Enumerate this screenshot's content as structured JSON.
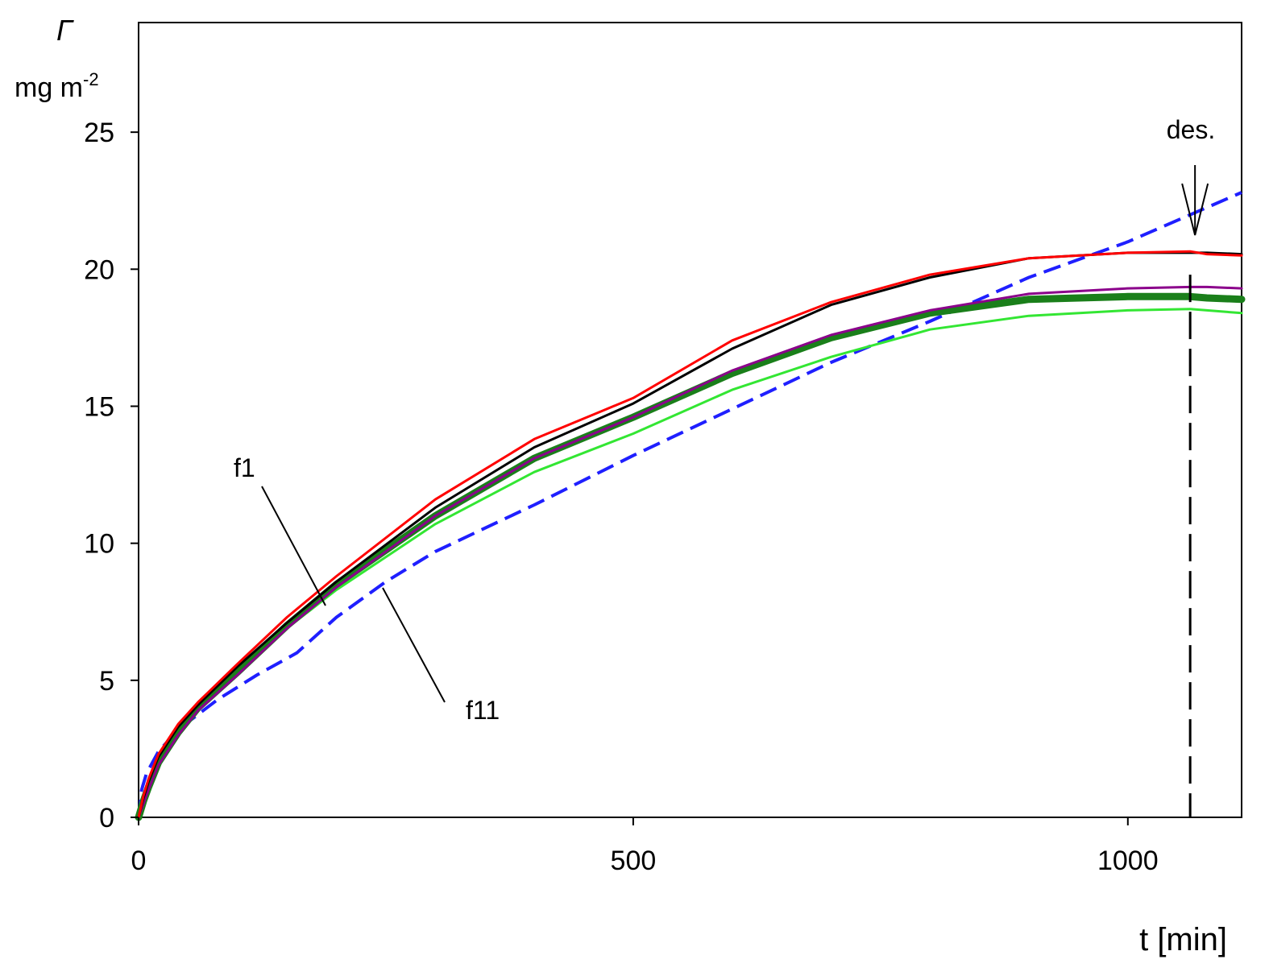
{
  "chart_data": {
    "type": "line",
    "ylabel_symbol": "Γ",
    "ylabel_unit": "mg m",
    "ylabel_unit_exp": "-2",
    "xlabel": "t [min]",
    "xlim": [
      0,
      1115
    ],
    "ylim": [
      0,
      29
    ],
    "xticks": [
      0,
      500,
      1000
    ],
    "yticks": [
      0,
      5,
      10,
      15,
      20,
      25
    ],
    "grid": false,
    "annotations": {
      "f1": "f1",
      "f11": "f11",
      "des": "des."
    },
    "desorption_time": 1063,
    "series": [
      {
        "color": "#ff0000",
        "style": "solid",
        "x": [
          0,
          5,
          10,
          20,
          40,
          60,
          100,
          150,
          200,
          300,
          400,
          500,
          600,
          700,
          800,
          900,
          1000,
          1063,
          1080,
          1115
        ],
        "y": [
          0,
          0.8,
          1.4,
          2.3,
          3.4,
          4.2,
          5.6,
          7.3,
          8.8,
          11.6,
          13.8,
          15.3,
          17.4,
          18.8,
          19.8,
          20.4,
          20.6,
          20.65,
          20.55,
          20.5
        ]
      },
      {
        "color": "#000000",
        "style": "solid",
        "x": [
          0,
          5,
          10,
          20,
          40,
          60,
          100,
          150,
          200,
          300,
          400,
          500,
          600,
          700,
          800,
          900,
          1000,
          1063,
          1080,
          1115
        ],
        "y": [
          0,
          0.7,
          1.3,
          2.2,
          3.3,
          4.1,
          5.5,
          7.1,
          8.6,
          11.3,
          13.5,
          15.1,
          17.1,
          18.7,
          19.7,
          20.4,
          20.6,
          20.6,
          20.6,
          20.55
        ]
      },
      {
        "color": "#8b008b",
        "style": "solid",
        "x": [
          0,
          5,
          10,
          20,
          40,
          60,
          100,
          150,
          200,
          300,
          400,
          500,
          600,
          700,
          800,
          900,
          1000,
          1063,
          1080,
          1115
        ],
        "y": [
          0,
          0.5,
          1.0,
          1.9,
          3.0,
          3.9,
          5.2,
          6.9,
          8.4,
          11.0,
          13.1,
          14.6,
          16.3,
          17.6,
          18.5,
          19.1,
          19.3,
          19.35,
          19.35,
          19.3
        ]
      },
      {
        "color": "#1a7f1a",
        "style": "thick",
        "x": [
          0,
          5,
          10,
          20,
          40,
          60,
          100,
          150,
          200,
          300,
          400,
          500,
          600,
          700,
          800,
          900,
          1000,
          1063,
          1080,
          1115
        ],
        "y": [
          0,
          0.6,
          1.1,
          2.0,
          3.1,
          4.0,
          5.3,
          7.0,
          8.5,
          11.0,
          13.1,
          14.6,
          16.2,
          17.5,
          18.4,
          18.9,
          19.0,
          19.0,
          18.95,
          18.9
        ]
      },
      {
        "color": "#33e633",
        "style": "solid",
        "x": [
          0,
          5,
          10,
          20,
          40,
          60,
          100,
          150,
          200,
          300,
          400,
          500,
          600,
          700,
          800,
          900,
          1000,
          1063,
          1080,
          1115
        ],
        "y": [
          0,
          0.6,
          1.1,
          2.0,
          3.1,
          4.0,
          5.3,
          6.9,
          8.3,
          10.7,
          12.6,
          14.0,
          15.6,
          16.8,
          17.8,
          18.3,
          18.5,
          18.55,
          18.5,
          18.4
        ]
      },
      {
        "color": "#1f1fff",
        "style": "dashed",
        "x": [
          0,
          3,
          8,
          20,
          40,
          80,
          120,
          160,
          200,
          250,
          300,
          400,
          500,
          600,
          700,
          800,
          900,
          1000,
          1115
        ],
        "y": [
          0,
          1.0,
          1.6,
          2.4,
          3.2,
          4.3,
          5.2,
          6.0,
          7.3,
          8.6,
          9.7,
          11.4,
          13.2,
          14.9,
          16.6,
          18.1,
          19.7,
          21.0,
          22.8
        ]
      }
    ]
  }
}
